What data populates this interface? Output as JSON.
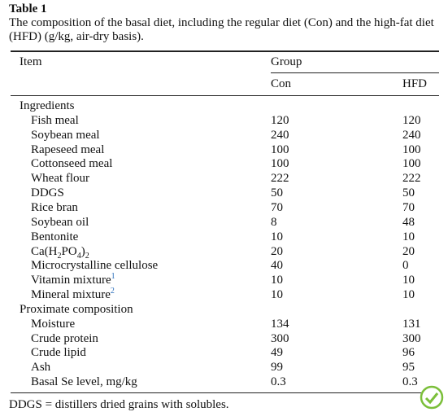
{
  "caption": {
    "label": "Table 1",
    "text": "The composition of the basal diet, including the regular diet (Con) and the high-fat diet (HFD) (g/kg, air-dry basis)."
  },
  "table": {
    "header": {
      "item": "Item",
      "group": "Group",
      "columns": [
        "Con",
        "HFD"
      ]
    },
    "sections": [
      {
        "title": "Ingredients",
        "rows": [
          {
            "item": [
              {
                "text": "Fish meal"
              }
            ],
            "values": [
              120,
              120
            ]
          },
          {
            "item": [
              {
                "text": "Soybean meal"
              }
            ],
            "values": [
              240,
              240
            ]
          },
          {
            "item": [
              {
                "text": "Rapeseed meal"
              }
            ],
            "values": [
              100,
              100
            ]
          },
          {
            "item": [
              {
                "text": "Cottonseed meal"
              }
            ],
            "values": [
              100,
              100
            ]
          },
          {
            "item": [
              {
                "text": "Wheat flour"
              }
            ],
            "values": [
              222,
              222
            ]
          },
          {
            "item": [
              {
                "text": "DDGS"
              }
            ],
            "values": [
              50,
              50
            ]
          },
          {
            "item": [
              {
                "text": "Rice bran"
              }
            ],
            "values": [
              70,
              70
            ]
          },
          {
            "item": [
              {
                "text": "Soybean oil"
              }
            ],
            "values": [
              8,
              48
            ]
          },
          {
            "item": [
              {
                "text": "Bentonite"
              }
            ],
            "values": [
              10,
              10
            ]
          },
          {
            "item": [
              {
                "text": "Ca(H"
              },
              {
                "text": "2",
                "sub": true
              },
              {
                "text": "PO"
              },
              {
                "text": "4",
                "sub": true
              },
              {
                "text": ")"
              },
              {
                "text": "2",
                "sub": true
              }
            ],
            "values": [
              20,
              20
            ]
          },
          {
            "item": [
              {
                "text": "Microcrystalline cellulose"
              }
            ],
            "values": [
              40,
              0
            ]
          },
          {
            "item": [
              {
                "text": "Vitamin mixture"
              },
              {
                "text": "1",
                "sup": true
              }
            ],
            "values": [
              10,
              10
            ]
          },
          {
            "item": [
              {
                "text": "Mineral mixture"
              },
              {
                "text": "2",
                "sup": true
              }
            ],
            "values": [
              10,
              10
            ]
          }
        ]
      },
      {
        "title": "Proximate composition",
        "rows": [
          {
            "item": [
              {
                "text": "Moisture"
              }
            ],
            "values": [
              134,
              131
            ]
          },
          {
            "item": [
              {
                "text": "Crude protein"
              }
            ],
            "values": [
              300,
              300
            ]
          },
          {
            "item": [
              {
                "text": "Crude lipid"
              }
            ],
            "values": [
              49,
              96
            ]
          },
          {
            "item": [
              {
                "text": "Ash"
              }
            ],
            "values": [
              99,
              95
            ]
          },
          {
            "item": [
              {
                "text": "Basal Se level, mg/kg"
              }
            ],
            "values": [
              0.3,
              0.3
            ]
          }
        ]
      }
    ]
  },
  "footnote": "DDGS = distillers dried grains with solubles."
}
